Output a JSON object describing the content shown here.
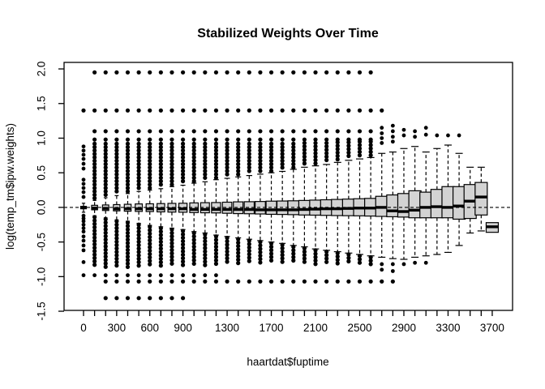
{
  "chart_data": {
    "type": "boxplot",
    "title": "Stabilized Weights Over Time",
    "xlabel": "haartdat$fuptime",
    "ylabel": "log(temp_tm$ipw.weights)",
    "ylim": [
      -1.5,
      2.0
    ],
    "y_tick_labels": [
      "-1.5",
      "-1.0",
      "-0.5",
      "0.0",
      "0.5",
      "1.0",
      "1.5",
      "2.0"
    ],
    "x_tick_labels": [
      "0",
      "300",
      "600",
      "900",
      "1300",
      "1700",
      "2100",
      "2500",
      "2900",
      "3300",
      "3700"
    ],
    "x_tick_label_group_indices": [
      0,
      3,
      6,
      9,
      13,
      17,
      21,
      25,
      29,
      33,
      37
    ],
    "group_spacing_days": 100,
    "reference_line": {
      "y": 0.0,
      "style": "dashed"
    },
    "legend": "none",
    "grid": "off",
    "colors": {
      "box_fill": "#d3d3d3",
      "stroke": "#000000",
      "background": "#ffffff"
    },
    "outlier_rows": [
      {
        "value": 1.95,
        "from_group": 1,
        "to_group": 26
      },
      {
        "value": 1.4,
        "from_group": 0,
        "to_group": 27
      },
      {
        "value": 1.1,
        "from_group": 1,
        "to_group": 26
      },
      {
        "value": 0.98,
        "from_group": 1,
        "to_group": 26
      },
      {
        "value": -1.07,
        "from_group": 2,
        "to_group": 28
      },
      {
        "value": -1.31,
        "from_group": 2,
        "to_group": 9
      }
    ],
    "groups": [
      {
        "t": 0,
        "q1": -0.02,
        "med": -0.005,
        "q3": 0.015,
        "lo": -0.07,
        "hi": 0.06,
        "su": null,
        "sd": null,
        "dots": [
          0.88,
          0.82,
          0.76,
          0.7,
          0.63,
          0.56,
          0.4,
          0.34,
          0.28,
          0.22,
          0.15,
          -0.12,
          -0.16,
          -0.2,
          -0.25,
          -0.3,
          -0.35,
          -0.42,
          -0.48,
          -0.55,
          -0.62,
          -0.79,
          -0.98
        ]
      },
      {
        "t": 100,
        "q1": -0.035,
        "med": -0.01,
        "q3": 0.03,
        "lo": -0.12,
        "hi": 0.1,
        "su": [
          0.12,
          0.92
        ],
        "sd": [
          -0.876,
          -0.14
        ],
        "dots": [
          -0.98
        ]
      },
      {
        "t": 200,
        "q1": -0.045,
        "med": -0.015,
        "q3": 0.035,
        "lo": -0.15,
        "hi": 0.14,
        "su": [
          0.16,
          0.92
        ],
        "sd": [
          -0.872,
          -0.17
        ],
        "dots": [
          -0.98
        ]
      },
      {
        "t": 300,
        "q1": -0.05,
        "med": -0.02,
        "q3": 0.04,
        "lo": -0.18,
        "hi": 0.17,
        "su": [
          0.19,
          0.92
        ],
        "sd": [
          -0.868,
          -0.2
        ],
        "dots": [
          -0.98
        ]
      },
      {
        "t": 400,
        "q1": -0.055,
        "med": -0.02,
        "q3": 0.045,
        "lo": -0.2,
        "hi": 0.2,
        "su": [
          0.22,
          0.92
        ],
        "sd": [
          -0.864,
          -0.22
        ],
        "dots": [
          -0.98
        ]
      },
      {
        "t": 500,
        "q1": -0.058,
        "med": -0.02,
        "q3": 0.05,
        "lo": -0.23,
        "hi": 0.23,
        "su": [
          0.25,
          0.92
        ],
        "sd": [
          -0.86,
          -0.25
        ],
        "dots": [
          -0.98
        ]
      },
      {
        "t": 600,
        "q1": -0.06,
        "med": -0.02,
        "q3": 0.052,
        "lo": -0.26,
        "hi": 0.25,
        "su": [
          0.27,
          0.92
        ],
        "sd": [
          -0.856,
          -0.28
        ],
        "dots": [
          -0.98
        ]
      },
      {
        "t": 700,
        "q1": -0.065,
        "med": -0.02,
        "q3": 0.055,
        "lo": -0.28,
        "hi": 0.27,
        "su": [
          0.29,
          0.92
        ],
        "sd": [
          -0.852,
          -0.3
        ],
        "dots": [
          -0.98
        ]
      },
      {
        "t": 800,
        "q1": -0.068,
        "med": -0.02,
        "q3": 0.058,
        "lo": -0.3,
        "hi": 0.3,
        "su": [
          0.32,
          0.92
        ],
        "sd": [
          -0.848,
          -0.32
        ],
        "dots": [
          -0.98
        ]
      },
      {
        "t": 900,
        "q1": -0.07,
        "med": -0.02,
        "q3": 0.06,
        "lo": -0.32,
        "hi": 0.32,
        "su": [
          0.34,
          0.92
        ],
        "sd": [
          -0.844,
          -0.34
        ],
        "dots": [
          -0.98
        ]
      },
      {
        "t": 1000,
        "q1": -0.075,
        "med": -0.03,
        "q3": 0.065,
        "lo": -0.35,
        "hi": 0.35,
        "su": [
          0.37,
          0.92
        ],
        "sd": [
          -0.84,
          -0.37
        ],
        "dots": [
          -0.98
        ]
      },
      {
        "t": 1100,
        "q1": -0.078,
        "med": -0.03,
        "q3": 0.068,
        "lo": -0.37,
        "hi": 0.37,
        "su": [
          0.39,
          0.92
        ],
        "sd": [
          -0.836,
          -0.39
        ],
        "dots": [
          -0.98
        ]
      },
      {
        "t": 1200,
        "q1": -0.08,
        "med": -0.03,
        "q3": 0.07,
        "lo": -0.4,
        "hi": 0.4,
        "su": [
          0.42,
          0.92
        ],
        "sd": [
          -0.832,
          -0.42
        ],
        "dots": [
          -0.98
        ]
      },
      {
        "t": 1300,
        "q1": -0.085,
        "med": -0.03,
        "q3": 0.075,
        "lo": -0.42,
        "hi": 0.42,
        "su": [
          0.44,
          0.92
        ],
        "sd": [
          -0.828,
          -0.44
        ],
        "dots": []
      },
      {
        "t": 1400,
        "q1": -0.09,
        "med": -0.03,
        "q3": 0.08,
        "lo": -0.44,
        "hi": 0.44,
        "su": [
          0.46,
          0.92
        ],
        "sd": [
          -0.824,
          -0.46
        ],
        "dots": []
      },
      {
        "t": 1500,
        "q1": -0.092,
        "med": -0.03,
        "q3": 0.082,
        "lo": -0.46,
        "hi": 0.46,
        "su": [
          0.48,
          0.92
        ],
        "sd": [
          -0.82,
          -0.48
        ],
        "dots": []
      },
      {
        "t": 1600,
        "q1": -0.095,
        "med": -0.035,
        "q3": 0.085,
        "lo": -0.48,
        "hi": 0.48,
        "su": [
          0.5,
          0.92
        ],
        "sd": [
          -0.816,
          -0.5
        ],
        "dots": []
      },
      {
        "t": 1700,
        "q1": -0.1,
        "med": -0.035,
        "q3": 0.09,
        "lo": -0.5,
        "hi": 0.5,
        "su": [
          0.52,
          0.92
        ],
        "sd": [
          -0.812,
          -0.52
        ],
        "dots": []
      },
      {
        "t": 1800,
        "q1": -0.102,
        "med": -0.035,
        "q3": 0.092,
        "lo": -0.52,
        "hi": 0.52,
        "su": [
          0.54,
          0.92
        ],
        "sd": [
          -0.808,
          -0.54
        ],
        "dots": []
      },
      {
        "t": 1900,
        "q1": -0.105,
        "med": -0.035,
        "q3": 0.095,
        "lo": -0.55,
        "hi": 0.55,
        "su": [
          0.57,
          0.92
        ],
        "sd": [
          -0.804,
          -0.57
        ],
        "dots": []
      },
      {
        "t": 2000,
        "q1": -0.11,
        "med": -0.03,
        "q3": 0.1,
        "lo": -0.57,
        "hi": 0.58,
        "su": [
          0.6,
          0.93
        ],
        "sd": [
          -0.82,
          -0.59
        ],
        "dots": []
      },
      {
        "t": 2100,
        "q1": -0.112,
        "med": -0.025,
        "q3": 0.105,
        "lo": -0.6,
        "hi": 0.6,
        "su": [
          0.62,
          0.93
        ],
        "sd": [
          -0.82,
          -0.62
        ],
        "dots": []
      },
      {
        "t": 2200,
        "q1": -0.115,
        "med": -0.02,
        "q3": 0.11,
        "lo": -0.62,
        "hi": 0.62,
        "su": [
          0.64,
          0.93
        ],
        "sd": [
          -0.82,
          -0.64
        ],
        "dots": []
      },
      {
        "t": 2300,
        "q1": -0.118,
        "med": -0.02,
        "q3": 0.115,
        "lo": -0.64,
        "hi": 0.65,
        "su": [
          0.67,
          0.94
        ],
        "sd": [
          -0.82,
          -0.66
        ],
        "dots": []
      },
      {
        "t": 2400,
        "q1": -0.12,
        "med": -0.015,
        "q3": 0.12,
        "lo": -0.66,
        "hi": 0.68,
        "su": [
          0.7,
          0.94
        ],
        "sd": [
          -0.82,
          -0.68
        ],
        "dots": []
      },
      {
        "t": 2500,
        "q1": -0.122,
        "med": -0.01,
        "q3": 0.125,
        "lo": -0.68,
        "hi": 0.7,
        "su": [
          0.72,
          0.95
        ],
        "sd": [
          -0.82,
          -0.7
        ],
        "dots": []
      },
      {
        "t": 2600,
        "q1": -0.125,
        "med": -0.01,
        "q3": 0.13,
        "lo": -0.7,
        "hi": 0.72,
        "su": [
          0.74,
          0.95
        ],
        "sd": [
          -0.84,
          -0.72
        ],
        "dots": []
      },
      {
        "t": 2700,
        "q1": -0.13,
        "med": 0.0,
        "q3": 0.16,
        "lo": -0.72,
        "hi": 0.78,
        "su": null,
        "sd": null,
        "dots": [
          1.15,
          1.07,
          1.0,
          0.93,
          -0.82,
          -0.9
        ]
      },
      {
        "t": 2800,
        "q1": -0.135,
        "med": -0.05,
        "q3": 0.18,
        "lo": -0.74,
        "hi": 0.8,
        "su": null,
        "sd": null,
        "dots": [
          1.18,
          1.1,
          1.02,
          0.95,
          -0.82,
          -0.92
        ]
      },
      {
        "t": 2900,
        "q1": -0.14,
        "med": -0.06,
        "q3": 0.2,
        "lo": -0.75,
        "hi": 0.85,
        "su": null,
        "sd": null,
        "dots": [
          1.12,
          1.04,
          -0.82
        ]
      },
      {
        "t": 3000,
        "q1": -0.15,
        "med": -0.04,
        "q3": 0.24,
        "lo": -0.72,
        "hi": 0.88,
        "su": null,
        "sd": null,
        "dots": [
          1.1,
          1.02,
          -0.8
        ]
      },
      {
        "t": 3100,
        "q1": -0.15,
        "med": 0.0,
        "q3": 0.22,
        "lo": -0.7,
        "hi": 0.8,
        "su": null,
        "sd": null,
        "dots": [
          1.15,
          1.05,
          -0.8
        ]
      },
      {
        "t": 3200,
        "q1": -0.15,
        "med": 0.01,
        "q3": 0.26,
        "lo": -0.68,
        "hi": 0.85,
        "su": null,
        "sd": null,
        "dots": [
          1.04
        ]
      },
      {
        "t": 3300,
        "q1": -0.15,
        "med": 0.0,
        "q3": 0.3,
        "lo": -0.65,
        "hi": 0.9,
        "su": null,
        "sd": null,
        "dots": [
          1.04
        ]
      },
      {
        "t": 3400,
        "q1": -0.17,
        "med": 0.02,
        "q3": 0.3,
        "lo": -0.55,
        "hi": 0.78,
        "su": null,
        "sd": null,
        "dots": [
          1.04
        ]
      },
      {
        "t": 3500,
        "q1": -0.16,
        "med": 0.09,
        "q3": 0.33,
        "lo": -0.37,
        "hi": 0.58,
        "su": null,
        "sd": null,
        "dots": []
      },
      {
        "t": 3600,
        "q1": -0.11,
        "med": 0.15,
        "q3": 0.36,
        "lo": -0.34,
        "hi": 0.58,
        "su": null,
        "sd": null,
        "dots": []
      },
      {
        "t": 3700,
        "q1": -0.36,
        "med": -0.28,
        "q3": -0.22,
        "lo": null,
        "hi": null,
        "su": null,
        "sd": null,
        "dots": []
      }
    ]
  }
}
